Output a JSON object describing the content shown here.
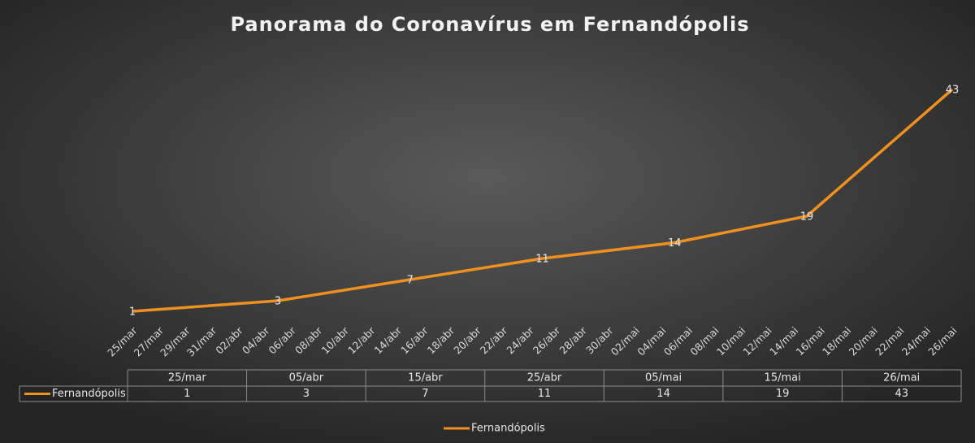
{
  "chart_data": {
    "type": "line",
    "title": "Panorama do Coronavírus em Fernandópolis",
    "x": [
      "25/mar",
      "05/abr",
      "15/abr",
      "25/abr",
      "05/mai",
      "15/mai",
      "26/mai"
    ],
    "series": [
      {
        "name": "Fernandópolis",
        "color": "#f0901e",
        "values": [
          1,
          3,
          7,
          11,
          14,
          19,
          43
        ]
      }
    ],
    "xticks": [
      "25/mar",
      "27/mar",
      "29/mar",
      "31/mar",
      "02/abr",
      "04/abr",
      "06/abr",
      "08/abr",
      "10/abr",
      "12/abr",
      "14/abr",
      "16/abr",
      "18/abr",
      "20/abr",
      "22/abr",
      "24/abr",
      "26/abr",
      "28/abr",
      "30/abr",
      "02/mai",
      "04/mai",
      "06/mai",
      "08/mai",
      "10/mai",
      "12/mai",
      "14/mai",
      "16/mai",
      "18/mai",
      "20/mai",
      "22/mai",
      "24/mai",
      "26/mai"
    ],
    "ylim": [
      0,
      45
    ],
    "data_labels": true,
    "data_table": true,
    "legend": "bottom"
  }
}
